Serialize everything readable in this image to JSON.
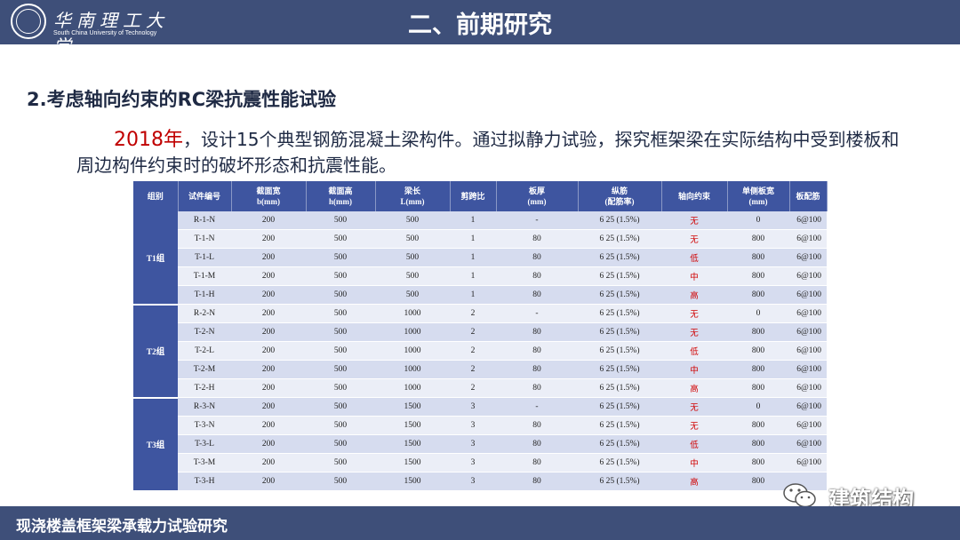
{
  "header": {
    "logo_cn": "华南理工大学",
    "logo_en": "South China University of Technology",
    "section_title": "二、前期研究"
  },
  "subtitle": "2.考虑轴向约束的RC梁抗震性能试验",
  "intro": {
    "year": "2018年",
    "text": "，设计15个典型钢筋混凝土梁构件。通过拟静力试验，探究框架梁在实际结构中受到楼板和周边构件约束时的破坏形态和抗震性能。"
  },
  "table": {
    "headers": [
      [
        "组别"
      ],
      [
        "试件编号"
      ],
      [
        "截面宽",
        "b(mm)"
      ],
      [
        "截面高",
        "h(mm)"
      ],
      [
        "梁长",
        "L(mm)"
      ],
      [
        "剪跨比"
      ],
      [
        "板厚",
        "(mm)"
      ],
      [
        "纵筋",
        "(配筋率)"
      ],
      [
        "轴向约束"
      ],
      [
        "单侧板宽",
        "(mm)"
      ],
      [
        "板配筋"
      ]
    ],
    "groups": [
      {
        "name": "T1组",
        "rows": [
          [
            "R-1-N",
            "200",
            "500",
            "500",
            "1",
            "-",
            "6   25 (1.5%)",
            "无",
            "0",
            "6@100"
          ],
          [
            "T-1-N",
            "200",
            "500",
            "500",
            "1",
            "80",
            "6   25 (1.5%)",
            "无",
            "800",
            "6@100"
          ],
          [
            "T-1-L",
            "200",
            "500",
            "500",
            "1",
            "80",
            "6   25 (1.5%)",
            "低",
            "800",
            "6@100"
          ],
          [
            "T-1-M",
            "200",
            "500",
            "500",
            "1",
            "80",
            "6   25 (1.5%)",
            "中",
            "800",
            "6@100"
          ],
          [
            "T-1-H",
            "200",
            "500",
            "500",
            "1",
            "80",
            "6   25 (1.5%)",
            "高",
            "800",
            "6@100"
          ]
        ]
      },
      {
        "name": "T2组",
        "rows": [
          [
            "R-2-N",
            "200",
            "500",
            "1000",
            "2",
            "-",
            "6   25 (1.5%)",
            "无",
            "0",
            "6@100"
          ],
          [
            "T-2-N",
            "200",
            "500",
            "1000",
            "2",
            "80",
            "6   25 (1.5%)",
            "无",
            "800",
            "6@100"
          ],
          [
            "T-2-L",
            "200",
            "500",
            "1000",
            "2",
            "80",
            "6   25 (1.5%)",
            "低",
            "800",
            "6@100"
          ],
          [
            "T-2-M",
            "200",
            "500",
            "1000",
            "2",
            "80",
            "6   25 (1.5%)",
            "中",
            "800",
            "6@100"
          ],
          [
            "T-2-H",
            "200",
            "500",
            "1000",
            "2",
            "80",
            "6   25 (1.5%)",
            "高",
            "800",
            "6@100"
          ]
        ]
      },
      {
        "name": "T3组",
        "rows": [
          [
            "R-3-N",
            "200",
            "500",
            "1500",
            "3",
            "-",
            "6   25 (1.5%)",
            "无",
            "0",
            "6@100"
          ],
          [
            "T-3-N",
            "200",
            "500",
            "1500",
            "3",
            "80",
            "6   25 (1.5%)",
            "无",
            "800",
            "6@100"
          ],
          [
            "T-3-L",
            "200",
            "500",
            "1500",
            "3",
            "80",
            "6   25 (1.5%)",
            "低",
            "800",
            "6@100"
          ],
          [
            "T-3-M",
            "200",
            "500",
            "1500",
            "3",
            "80",
            "6   25 (1.5%)",
            "中",
            "800",
            "6@100"
          ],
          [
            "T-3-H",
            "200",
            "500",
            "1500",
            "3",
            "80",
            "6   25 (1.5%)",
            "高",
            "800",
            ""
          ]
        ]
      }
    ]
  },
  "watermark": {
    "brand": "建筑结构",
    "icon": "wechat-icon"
  },
  "footer": {
    "text": "现浇楼盖框架梁承载力试验研究"
  },
  "colors": {
    "header_bg": "#3e4f79",
    "table_header_bg": "#3e55a0",
    "row_odd": "#d6dcef",
    "row_even": "#ebeef7",
    "highlight_red": "#c00000"
  }
}
